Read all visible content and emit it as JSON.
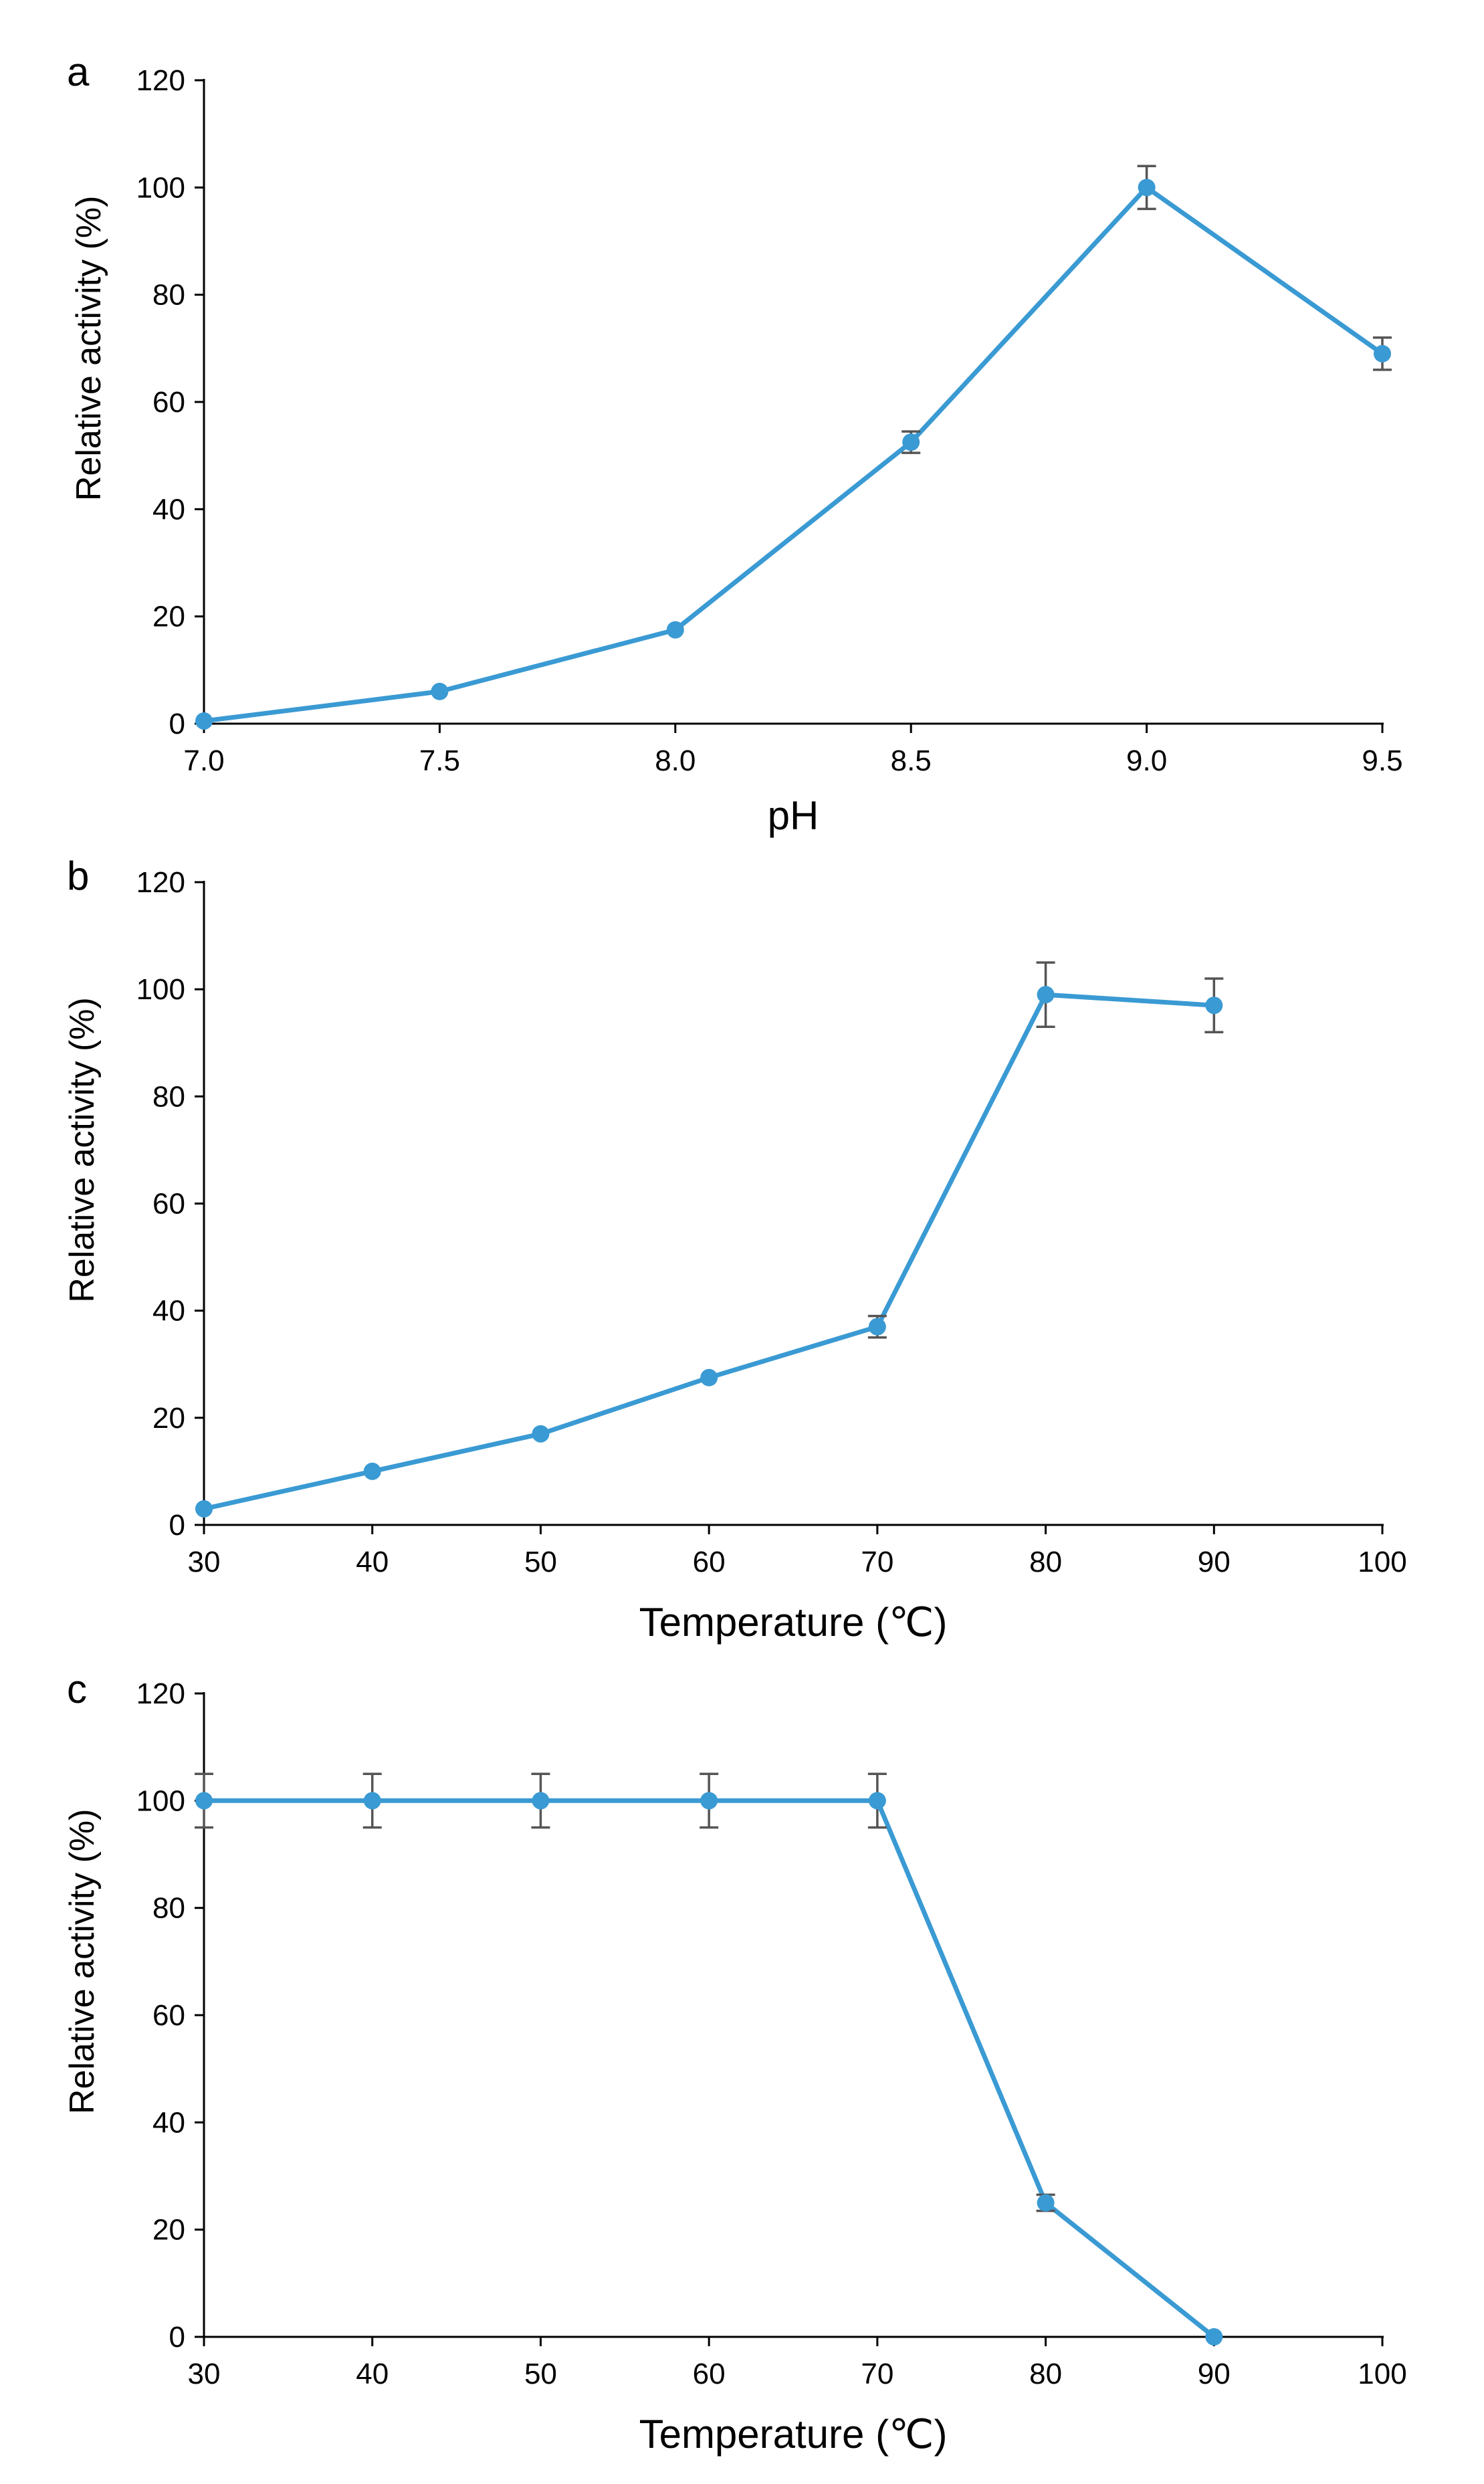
{
  "chart_data": [
    {
      "type": "line",
      "panel_label": "a",
      "title": "",
      "xlabel": "pH",
      "ylabel": "Relative activity (%)",
      "x": [
        7.0,
        7.5,
        8.0,
        8.5,
        9.0,
        9.5
      ],
      "x_tick_labels": [
        "7.0",
        "7.5",
        "8.0",
        "8.5",
        "9.0",
        "9.5"
      ],
      "xlim": [
        7.0,
        9.5
      ],
      "ylim": [
        0,
        120
      ],
      "y_ticks": [
        0,
        20,
        40,
        60,
        80,
        100,
        120
      ],
      "series": [
        {
          "name": "Relative activity",
          "color": "#3a9ad3",
          "values": [
            0.5,
            6,
            17.5,
            52.5,
            100,
            69
          ],
          "errors": [
            0,
            0,
            0,
            2,
            4,
            3
          ]
        }
      ],
      "grid": false
    },
    {
      "type": "line",
      "panel_label": "b",
      "title": "",
      "xlabel": "Temperature (℃)",
      "ylabel": "Relative activity (%)",
      "x": [
        30,
        40,
        50,
        60,
        70,
        80,
        90
      ],
      "x_tick_labels": [
        "30",
        "40",
        "50",
        "60",
        "70",
        "80",
        "90",
        "100"
      ],
      "x_ticks": [
        30,
        40,
        50,
        60,
        70,
        80,
        90,
        100
      ],
      "xlim": [
        30,
        100
      ],
      "ylim": [
        0,
        120
      ],
      "y_ticks": [
        0,
        20,
        40,
        60,
        80,
        100,
        120
      ],
      "series": [
        {
          "name": "Relative activity",
          "color": "#3a9ad3",
          "values": [
            3,
            10,
            17,
            27.5,
            37,
            99,
            97
          ],
          "errors": [
            0,
            0,
            0,
            0,
            2,
            6,
            5
          ]
        }
      ],
      "grid": false
    },
    {
      "type": "line",
      "panel_label": "c",
      "title": "",
      "xlabel": "Temperature (℃)",
      "ylabel": "Relative activity (%)",
      "x": [
        30,
        40,
        50,
        60,
        70,
        80,
        90
      ],
      "x_tick_labels": [
        "30",
        "40",
        "50",
        "60",
        "70",
        "80",
        "90",
        "100"
      ],
      "x_ticks": [
        30,
        40,
        50,
        60,
        70,
        80,
        90,
        100
      ],
      "xlim": [
        30,
        100
      ],
      "ylim": [
        0,
        120
      ],
      "y_ticks": [
        0,
        20,
        40,
        60,
        80,
        100,
        120
      ],
      "series": [
        {
          "name": "Relative activity",
          "color": "#3a9ad3",
          "values": [
            100,
            100,
            100,
            100,
            100,
            25,
            0
          ],
          "errors": [
            5,
            5,
            5,
            5,
            5,
            1.5,
            0
          ]
        }
      ],
      "grid": false
    }
  ]
}
